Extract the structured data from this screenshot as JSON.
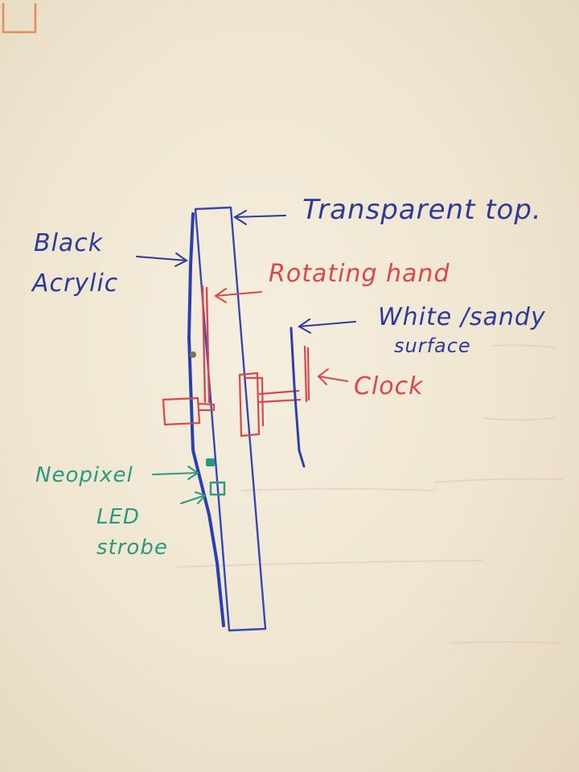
{
  "labels": {
    "transparent_top": "Transparent top.",
    "black_acrylic_line1": "Black",
    "black_acrylic_line2": "Acrylic",
    "rotating_hand": "Rotating hand",
    "white_sandy_line1": "White /sandy",
    "white_sandy_line2": "surface",
    "clock": "Clock",
    "neopixel": "Neopixel",
    "led_strobe_line1": "LED",
    "led_strobe_line2": "strobe"
  },
  "colors": {
    "blue_ink": "#2c3b9a",
    "red_ink": "#d8484a",
    "green_ink": "#2a9a7e",
    "paper": "#f3ead8"
  }
}
